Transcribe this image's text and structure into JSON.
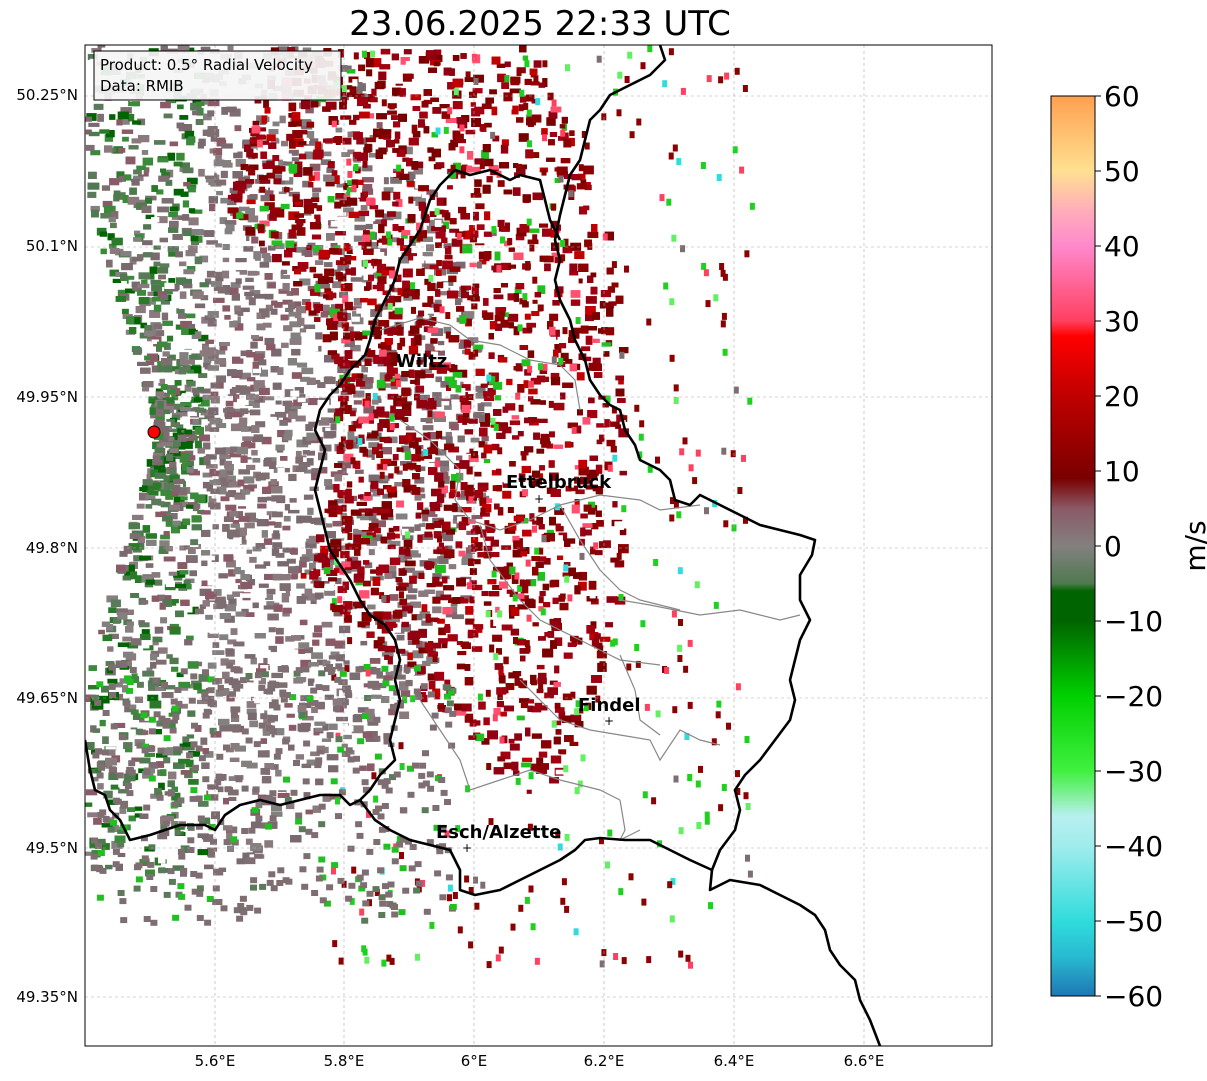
{
  "title": "23.06.2025 22:33 UTC",
  "info_box": {
    "product": "Product: 0.5° Radial Velocity",
    "data": "Data: RMIB"
  },
  "lat_ticks": [
    "50.25°N",
    "50.1°N",
    "49.95°N",
    "49.8°N",
    "49.65°N",
    "49.5°N",
    "49.35°N"
  ],
  "lon_ticks": [
    "5.6°E",
    "5.8°E",
    "6°E",
    "6.2°E",
    "6.4°E",
    "6.6°E"
  ],
  "cities": [
    {
      "name": "Wiltz",
      "lon": 5.93,
      "lat": 49.966
    },
    {
      "name": "Ettelbruck",
      "lon": 6.1,
      "lat": 49.848
    },
    {
      "name": "Findel",
      "lon": 6.21,
      "lat": 49.627
    },
    {
      "name": "Esch/Alzette",
      "lon": 5.99,
      "lat": 49.497
    }
  ],
  "radar_site": {
    "lon": 5.505,
    "lat": 49.914
  },
  "map_extent": {
    "lon_min": 5.4,
    "lon_max": 6.8,
    "lat_min": 49.3,
    "lat_max": 50.3
  },
  "colorbar": {
    "label": "m/s",
    "ticks": [
      "60",
      "50",
      "40",
      "30",
      "20",
      "10",
      "0",
      "−10",
      "−20",
      "−30",
      "−40",
      "−50",
      "−60"
    ],
    "vmin": -60,
    "vmax": 60,
    "stops": [
      {
        "value": -60,
        "color": "#1f77b4"
      },
      {
        "value": -55,
        "color": "#27b8d0"
      },
      {
        "value": -50,
        "color": "#30dcdc"
      },
      {
        "value": -40,
        "color": "#a0ecec"
      },
      {
        "value": -36,
        "color": "#b8f0f0"
      },
      {
        "value": -34,
        "color": "#90f0b0"
      },
      {
        "value": -30,
        "color": "#40f040"
      },
      {
        "value": -20,
        "color": "#00d000"
      },
      {
        "value": -10,
        "color": "#006400"
      },
      {
        "value": -6,
        "color": "#006400"
      },
      {
        "value": -5,
        "color": "#4f7a4f"
      },
      {
        "value": 0,
        "color": "#848080"
      },
      {
        "value": 5,
        "color": "#8a5a66"
      },
      {
        "value": 9,
        "color": "#7a0000"
      },
      {
        "value": 20,
        "color": "#c00000"
      },
      {
        "value": 28,
        "color": "#ff0000"
      },
      {
        "value": 30,
        "color": "#ff4060"
      },
      {
        "value": 40,
        "color": "#ff88cc"
      },
      {
        "value": 45,
        "color": "#ffb0b8"
      },
      {
        "value": 50,
        "color": "#ffe090"
      },
      {
        "value": 60,
        "color": "#ffa050"
      }
    ]
  }
}
